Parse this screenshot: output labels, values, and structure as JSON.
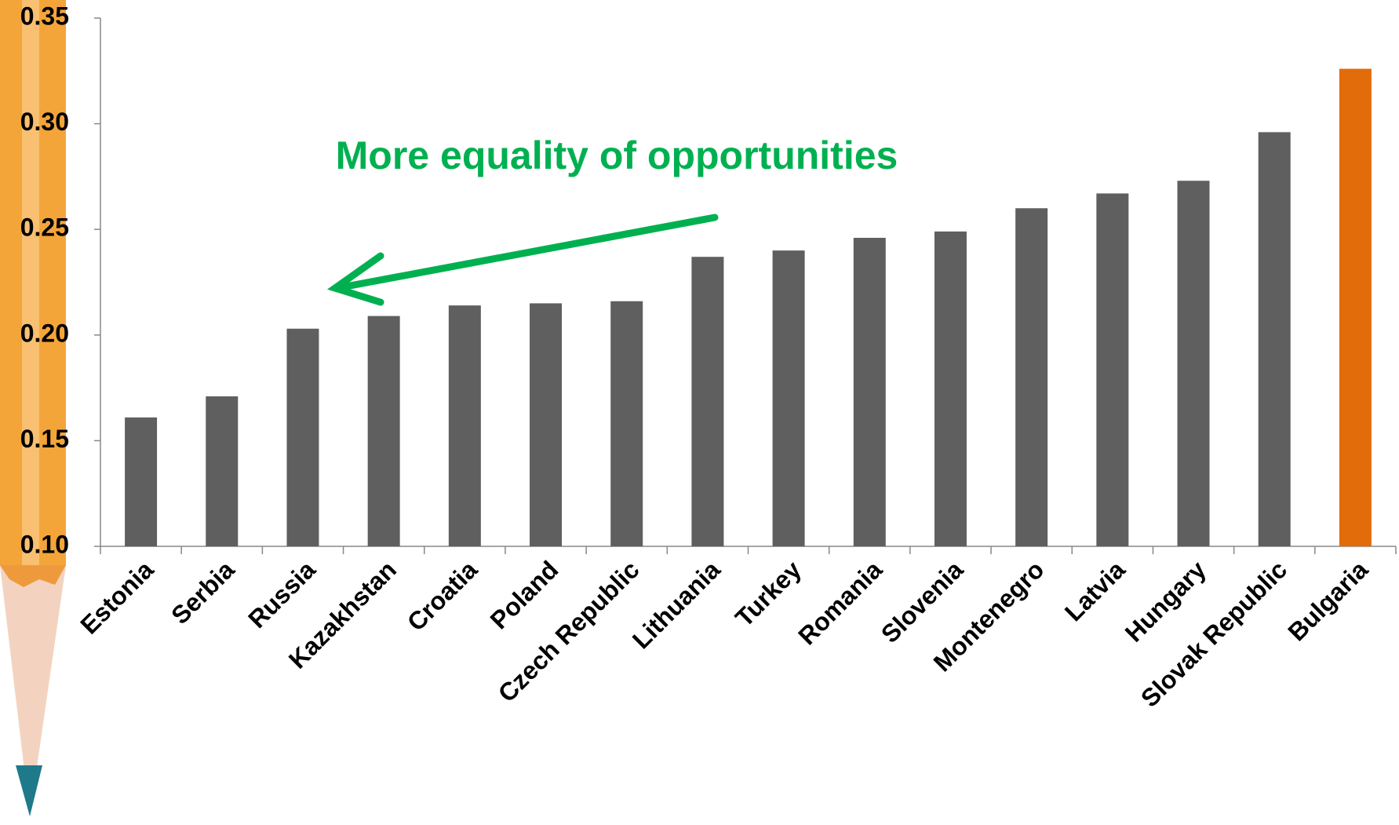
{
  "chart_data": {
    "type": "bar",
    "annotation": "More equality of opportunities",
    "categories": [
      "Estonia",
      "Serbia",
      "Russia",
      "Kazakhstan",
      "Croatia",
      "Poland",
      "Czech Republic",
      "Lithuania",
      "Turkey",
      "Romania",
      "Slovenia",
      "Montenegro",
      "Latvia",
      "Hungary",
      "Slovak Republic",
      "Bulgaria"
    ],
    "values": [
      0.161,
      0.171,
      0.203,
      0.209,
      0.214,
      0.215,
      0.216,
      0.237,
      0.24,
      0.246,
      0.249,
      0.26,
      0.267,
      0.273,
      0.296,
      0.326
    ],
    "colors": [
      "#5f5f5f",
      "#5f5f5f",
      "#5f5f5f",
      "#5f5f5f",
      "#5f5f5f",
      "#5f5f5f",
      "#5f5f5f",
      "#5f5f5f",
      "#5f5f5f",
      "#5f5f5f",
      "#5f5f5f",
      "#5f5f5f",
      "#5f5f5f",
      "#5f5f5f",
      "#5f5f5f",
      "#e36c0a"
    ],
    "ylim": [
      0.1,
      0.35
    ],
    "yticks": [
      {
        "value": 0.1,
        "label": "0.10"
      },
      {
        "value": 0.15,
        "label": "0.15"
      },
      {
        "value": 0.2,
        "label": "0.20"
      },
      {
        "value": 0.25,
        "label": "0.25"
      },
      {
        "value": 0.3,
        "label": "0.30"
      },
      {
        "value": 0.35,
        "label": "0.35"
      }
    ],
    "grid": false
  }
}
